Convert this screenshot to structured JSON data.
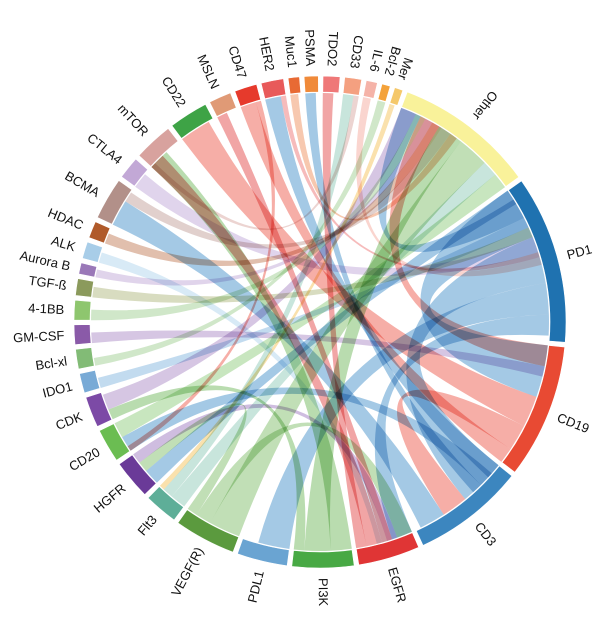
{
  "diagram": {
    "type": "chord",
    "segments": [
      {
        "id": "pd1",
        "label": "PD1",
        "color": "#1f72b0",
        "weight": 30
      },
      {
        "id": "cd19",
        "label": "CD19",
        "color": "#e84a33",
        "weight": 24
      },
      {
        "id": "cd3",
        "label": "CD3",
        "color": "#3c86bf",
        "weight": 20
      },
      {
        "id": "egfr",
        "label": "EGFR",
        "color": "#e03535",
        "weight": 11
      },
      {
        "id": "pi3k",
        "label": "PI3K",
        "color": "#48a944",
        "weight": 11
      },
      {
        "id": "pdl1",
        "label": "PDL1",
        "color": "#6aa4d2",
        "weight": 9
      },
      {
        "id": "vegfr",
        "label": "VEGF(R)",
        "color": "#5b9a3e",
        "weight": 11
      },
      {
        "id": "flt3",
        "label": "Flt3",
        "color": "#5eae98",
        "weight": 6
      },
      {
        "id": "hgfr",
        "label": "HGFR",
        "color": "#6a3a98",
        "weight": 7
      },
      {
        "id": "cd20",
        "label": "CD20",
        "color": "#6bbd52",
        "weight": 6
      },
      {
        "id": "cdk",
        "label": "CDK",
        "color": "#7c4aa6",
        "weight": 5.5
      },
      {
        "id": "ido1",
        "label": "IDO1",
        "color": "#78aad6",
        "weight": 3.5
      },
      {
        "id": "bclxl",
        "label": "Bcl-xl",
        "color": "#82bb76",
        "weight": 3.5
      },
      {
        "id": "gmcsf",
        "label": "GM-CSF",
        "color": "#8a5aa8",
        "weight": 3.5
      },
      {
        "id": "4-1bb",
        "label": "4-1BB",
        "color": "#8ec66e",
        "weight": 3.5
      },
      {
        "id": "tgfb",
        "label": "TGF-ß",
        "color": "#8b9a5c",
        "weight": 3
      },
      {
        "id": "aurorab",
        "label": "Aurora B",
        "color": "#9a78b8",
        "weight": 2
      },
      {
        "id": "alk",
        "label": "ALK",
        "color": "#a8cde8",
        "weight": 3
      },
      {
        "id": "hdac",
        "label": "HDAC",
        "color": "#b05a2a",
        "weight": 3
      },
      {
        "id": "bcma",
        "label": "BCMA",
        "color": "#b29089",
        "weight": 7.5
      },
      {
        "id": "ctla4",
        "label": "CTLA4",
        "color": "#c2a8d6",
        "weight": 4
      },
      {
        "id": "mtor",
        "label": "mTOR",
        "color": "#d8a29e",
        "weight": 7
      },
      {
        "id": "cd22",
        "label": "CD22",
        "color": "#3ea346",
        "weight": 7
      },
      {
        "id": "msln",
        "label": "MSLN",
        "color": "#e09a76",
        "weight": 4
      },
      {
        "id": "cd47",
        "label": "CD47",
        "color": "#e63a2c",
        "weight": 4
      },
      {
        "id": "her2",
        "label": "HER2",
        "color": "#e85a5a",
        "weight": 4
      },
      {
        "id": "muc1",
        "label": "Muc1",
        "color": "#e86a34",
        "weight": 2
      },
      {
        "id": "psma",
        "label": "PSMA",
        "color": "#f08a3a",
        "weight": 2.5
      },
      {
        "id": "tdo2",
        "label": "TDO2",
        "color": "#ef7878",
        "weight": 3
      },
      {
        "id": "cd33",
        "label": "CD33",
        "color": "#f4a080",
        "weight": 3
      },
      {
        "id": "il6",
        "label": "IL-6",
        "color": "#f5b3a8",
        "weight": 2
      },
      {
        "id": "bcl2",
        "label": "Bcl-2",
        "color": "#f4a23a",
        "weight": 1.5
      },
      {
        "id": "mer",
        "label": "Mer",
        "color": "#f5c86a",
        "weight": 1.5
      },
      {
        "id": "other",
        "label": "Other",
        "color": "#f9f29a",
        "weight": 25
      }
    ],
    "links": [
      {
        "a": "pd1",
        "b": "cd19",
        "w": 10,
        "color": "#5a9cd0"
      },
      {
        "a": "pd1",
        "b": "cd3",
        "w": 9,
        "color": "#5a9cd0"
      },
      {
        "a": "pd1",
        "b": "pdl1",
        "w": 6,
        "color": "#5a9cd0"
      },
      {
        "a": "pd1",
        "b": "egfr",
        "w": 4,
        "color": "#5a9cd0"
      },
      {
        "a": "pd1",
        "b": "hgfr",
        "w": 3,
        "color": "#5a9cd0"
      },
      {
        "a": "pd1",
        "b": "other",
        "w": 4,
        "color": "#5a9cd0"
      },
      {
        "a": "cd19",
        "b": "cd22",
        "w": 6,
        "color": "#ee6b5e"
      },
      {
        "a": "cd19",
        "b": "cd3",
        "w": 5,
        "color": "#ee6b5e"
      },
      {
        "a": "cd19",
        "b": "cd47",
        "w": 3,
        "color": "#ee6b5e"
      },
      {
        "a": "cd19",
        "b": "other",
        "w": 4,
        "color": "#ee6b5e"
      },
      {
        "a": "cd3",
        "b": "bcma",
        "w": 5,
        "color": "#5a9cd0"
      },
      {
        "a": "cd3",
        "b": "her2",
        "w": 3,
        "color": "#5a9cd0"
      },
      {
        "a": "cd3",
        "b": "cd20",
        "w": 3,
        "color": "#5a9cd0"
      },
      {
        "a": "cd3",
        "b": "psma",
        "w": 2,
        "color": "#5a9cd0"
      },
      {
        "a": "egfr",
        "b": "msln",
        "w": 2,
        "color": "#e55b5b"
      },
      {
        "a": "egfr",
        "b": "mtor",
        "w": 3,
        "color": "#e55b5b"
      },
      {
        "a": "egfr",
        "b": "tdo2",
        "w": 2,
        "color": "#e55b5b"
      },
      {
        "a": "pi3k",
        "b": "mtor",
        "w": 4,
        "color": "#7fbf6e"
      },
      {
        "a": "pi3k",
        "b": "other",
        "w": 5,
        "color": "#7fbf6e"
      },
      {
        "a": "pi3k",
        "b": "cdk",
        "w": 2,
        "color": "#7fbf6e"
      },
      {
        "a": "vegfr",
        "b": "other",
        "w": 6,
        "color": "#8ec47a"
      },
      {
        "a": "vegfr",
        "b": "egfr",
        "w": 3,
        "color": "#8ec47a"
      },
      {
        "a": "vegfr",
        "b": "hgfr",
        "w": 2,
        "color": "#8ec47a"
      },
      {
        "a": "flt3",
        "b": "other",
        "w": 3,
        "color": "#9bd0c0"
      },
      {
        "a": "flt3",
        "b": "cd33",
        "w": 2,
        "color": "#9bd0c0"
      },
      {
        "a": "hgfr",
        "b": "egfr",
        "w": 2,
        "color": "#a886c6"
      },
      {
        "a": "cd20",
        "b": "other",
        "w": 3,
        "color": "#9bd28a"
      },
      {
        "a": "cdk",
        "b": "other",
        "w": 3,
        "color": "#b497cc"
      },
      {
        "a": "ido1",
        "b": "pd1",
        "w": 2,
        "color": "#8fbde2"
      },
      {
        "a": "bclxl",
        "b": "bcl2",
        "w": 1.5,
        "color": "#a9d39c"
      },
      {
        "a": "gmcsf",
        "b": "cd19",
        "w": 2,
        "color": "#b497cc"
      },
      {
        "a": "4-1bb",
        "b": "other",
        "w": 2,
        "color": "#a9d39c"
      },
      {
        "a": "tgfb",
        "b": "pd1",
        "w": 2,
        "color": "#b8c08c"
      },
      {
        "a": "aurorab",
        "b": "other",
        "w": 1.5,
        "color": "#c6b0da"
      },
      {
        "a": "alk",
        "b": "egfr",
        "w": 2,
        "color": "#b8d8ee"
      },
      {
        "a": "hdac",
        "b": "other",
        "w": 2,
        "color": "#c88a6a"
      },
      {
        "a": "bcma",
        "b": "other",
        "w": 2,
        "color": "#c8aaa4"
      },
      {
        "a": "ctla4",
        "b": "pd1",
        "w": 3,
        "color": "#c7b1dc"
      },
      {
        "a": "cd47",
        "b": "cd20",
        "w": 1,
        "color": "#ee6b5e"
      },
      {
        "a": "her2",
        "b": "pd1",
        "w": 1,
        "color": "#ee8484"
      },
      {
        "a": "muc1",
        "b": "other",
        "w": 1.5,
        "color": "#f09a6e"
      },
      {
        "a": "il6",
        "b": "pd1",
        "w": 1.5,
        "color": "#f5b3a8"
      },
      {
        "a": "mer",
        "b": "flt3",
        "w": 1,
        "color": "#f5c86a"
      },
      {
        "a": "mtor",
        "b": "cd33",
        "w": 1,
        "color": "#dcb0ac"
      }
    ]
  }
}
